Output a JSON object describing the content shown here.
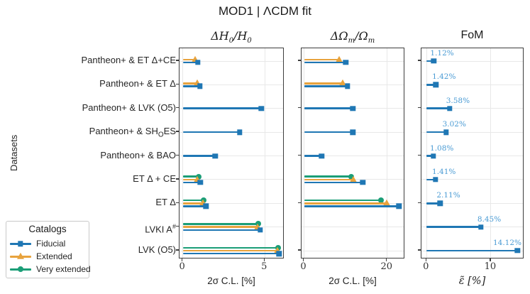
{
  "figure": {
    "title": "MOD1 | ΛCDM fit",
    "ylabel": "Datasets"
  },
  "legend": {
    "title": "Catalogs",
    "items": [
      {
        "label": "Fiducial",
        "marker": "square",
        "color": "#1f77b4"
      },
      {
        "label": "Extended",
        "marker": "triangle",
        "color": "#e8a33d"
      },
      {
        "label": "Very extended",
        "marker": "circle",
        "color": "#1b9e77"
      }
    ]
  },
  "colors": {
    "fiducial": "#1f77b4",
    "extended": "#e8a33d",
    "very_extended": "#1b9e77",
    "value_label": "#4a9bd4",
    "grid": "#e8e8e8",
    "axis": "#3d3d3d"
  },
  "chart_data": {
    "type": "bar",
    "orientation": "horizontal-lollipop",
    "grid": "on",
    "legend_position": "lower-left-outside",
    "categories": [
      "Pantheon+ & ET Δ+CE",
      "Pantheon+ & ET Δ",
      "Pantheon+ & LVK (O5)",
      "Pantheon+ & SH_{O}ES",
      "Pantheon+ & BAO",
      "ET Δ + CE",
      "ET Δ",
      "LVKI A^{#}",
      "LVK (O5)"
    ],
    "panels": [
      {
        "title": "ΔH_{0}/H_{0}",
        "title_math": true,
        "xlabel": "2σ C.L. [%]",
        "xlabel_math": false,
        "xlim": [
          -0.2,
          6.2
        ],
        "xticks": [
          0,
          5
        ],
        "ytick_rows": [
          0,
          1,
          2,
          3,
          4,
          5,
          6,
          7,
          8
        ],
        "series": [
          {
            "name": "Fiducial",
            "values": [
              0.92,
              1.05,
              4.79,
              3.46,
              1.97,
              1.07,
              1.42,
              4.72,
              5.86
            ]
          },
          {
            "name": "Extended",
            "values": [
              0.75,
              0.87,
              null,
              null,
              null,
              0.88,
              1.22,
              4.55,
              5.78
            ]
          },
          {
            "name": "Very extended",
            "values": [
              null,
              null,
              null,
              null,
              null,
              0.95,
              1.28,
              4.61,
              5.82
            ]
          }
        ]
      },
      {
        "title": "ΔΩ_{m}/Ω_{m}",
        "title_math": true,
        "xlabel": "2σ C.L. [%]",
        "xlabel_math": false,
        "xlim": [
          -0.6,
          24.3
        ],
        "xticks": [
          0,
          20
        ],
        "ytick_rows": [
          0,
          2,
          4,
          6,
          8
        ],
        "series": [
          {
            "name": "Fiducial",
            "values": [
              10.0,
              10.5,
              11.7,
              11.7,
              4.2,
              14.1,
              22.8,
              null,
              null
            ]
          },
          {
            "name": "Extended",
            "values": [
              8.5,
              9.3,
              null,
              null,
              null,
              11.9,
              19.8,
              null,
              null
            ]
          },
          {
            "name": "Very extended",
            "values": [
              null,
              null,
              null,
              null,
              null,
              11.4,
              18.5,
              null,
              null
            ]
          }
        ]
      },
      {
        "title": "FoM",
        "title_math": false,
        "xlabel": "ε̃ [%]",
        "xlabel_math": true,
        "xlim": [
          -0.8,
          15.2
        ],
        "xticks": [
          0,
          10
        ],
        "ytick_rows": [
          0,
          2,
          4,
          6,
          8
        ],
        "series": [
          {
            "name": "Fiducial",
            "values": [
              1.12,
              1.42,
              3.58,
              3.02,
              1.08,
              1.41,
              2.11,
              8.45,
              14.12
            ]
          }
        ],
        "value_labels": [
          "1.12%",
          "1.42%",
          "3.58%",
          "3.02%",
          "1.08%",
          "1.41%",
          "2.11%",
          "8.45%",
          "14.12%"
        ]
      }
    ]
  }
}
